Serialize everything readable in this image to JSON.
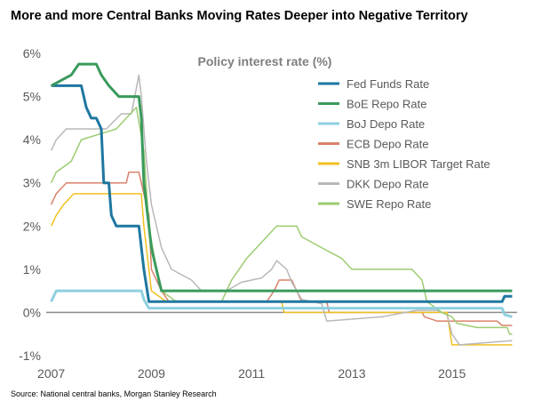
{
  "page": {
    "headline": "More and more Central Banks Moving Rates Deeper into Negative Territory",
    "source": "Source: National central banks, Morgan Stanley Research"
  },
  "chart_data": {
    "type": "line",
    "title": "Policy interest rate (%)",
    "xlabel": "",
    "ylabel": "",
    "xlim": [
      2006.9,
      2016.3
    ],
    "ylim": [
      -1,
      6
    ],
    "x_ticks": [
      {
        "value": 2007,
        "label": "2007"
      },
      {
        "value": 2009,
        "label": "2009"
      },
      {
        "value": 2011,
        "label": "2011"
      },
      {
        "value": 2013,
        "label": "2013"
      },
      {
        "value": 2015,
        "label": "2015"
      }
    ],
    "y_ticks": [
      {
        "value": 6,
        "label": "6%"
      },
      {
        "value": 5,
        "label": "5%"
      },
      {
        "value": 4,
        "label": "4%"
      },
      {
        "value": 3,
        "label": "3%"
      },
      {
        "value": 2,
        "label": "2%"
      },
      {
        "value": 1,
        "label": "1%"
      },
      {
        "value": 0,
        "label": "0%"
      },
      {
        "value": -1,
        "label": "-1%"
      }
    ],
    "grid": false,
    "legend": "top-right",
    "series": [
      {
        "name": "Fed Funds Rate",
        "color": "#1f77a0",
        "width": 3,
        "points": [
          [
            2007.0,
            5.25
          ],
          [
            2007.6,
            5.25
          ],
          [
            2007.7,
            4.75
          ],
          [
            2007.8,
            4.5
          ],
          [
            2007.9,
            4.5
          ],
          [
            2008.0,
            4.25
          ],
          [
            2008.05,
            3.0
          ],
          [
            2008.15,
            3.0
          ],
          [
            2008.2,
            2.25
          ],
          [
            2008.3,
            2.0
          ],
          [
            2008.75,
            2.0
          ],
          [
            2008.8,
            1.5
          ],
          [
            2008.85,
            1.0
          ],
          [
            2008.95,
            0.25
          ],
          [
            2016.0,
            0.25
          ],
          [
            2016.05,
            0.375
          ],
          [
            2016.2,
            0.375
          ]
        ]
      },
      {
        "name": "BoE Repo Rate",
        "color": "#3a9a5c",
        "width": 3,
        "points": [
          [
            2007.0,
            5.25
          ],
          [
            2007.4,
            5.5
          ],
          [
            2007.55,
            5.75
          ],
          [
            2007.9,
            5.75
          ],
          [
            2008.0,
            5.5
          ],
          [
            2008.15,
            5.25
          ],
          [
            2008.35,
            5.0
          ],
          [
            2008.75,
            5.0
          ],
          [
            2008.8,
            4.5
          ],
          [
            2008.85,
            3.0
          ],
          [
            2008.95,
            2.0
          ],
          [
            2009.0,
            1.5
          ],
          [
            2009.1,
            1.0
          ],
          [
            2009.2,
            0.5
          ],
          [
            2016.2,
            0.5
          ]
        ]
      },
      {
        "name": "BoJ Depo Rate",
        "color": "#8fd0e0",
        "width": 3,
        "points": [
          [
            2007.0,
            0.25
          ],
          [
            2007.1,
            0.5
          ],
          [
            2008.8,
            0.5
          ],
          [
            2008.85,
            0.3
          ],
          [
            2008.95,
            0.1
          ],
          [
            2016.0,
            0.1
          ],
          [
            2016.05,
            -0.05
          ],
          [
            2016.2,
            -0.1
          ]
        ]
      },
      {
        "name": "ECB Depo Rate",
        "color": "#d9826a",
        "width": 1.5,
        "points": [
          [
            2007.0,
            2.5
          ],
          [
            2007.1,
            2.75
          ],
          [
            2007.3,
            3.0
          ],
          [
            2008.5,
            3.0
          ],
          [
            2008.55,
            3.25
          ],
          [
            2008.75,
            3.25
          ],
          [
            2008.85,
            2.75
          ],
          [
            2008.95,
            2.25
          ],
          [
            2009.0,
            1.0
          ],
          [
            2009.2,
            0.5
          ],
          [
            2009.35,
            0.25
          ],
          [
            2011.3,
            0.25
          ],
          [
            2011.45,
            0.5
          ],
          [
            2011.55,
            0.75
          ],
          [
            2011.8,
            0.75
          ],
          [
            2011.9,
            0.5
          ],
          [
            2012.0,
            0.25
          ],
          [
            2012.5,
            0.25
          ],
          [
            2012.55,
            0.0
          ],
          [
            2014.4,
            0.0
          ],
          [
            2014.45,
            -0.1
          ],
          [
            2014.7,
            -0.2
          ],
          [
            2015.9,
            -0.2
          ],
          [
            2016.0,
            -0.3
          ],
          [
            2016.2,
            -0.3
          ]
        ]
      },
      {
        "name": "SNB 3m LIBOR Target Rate",
        "color": "#f0c020",
        "width": 1.5,
        "points": [
          [
            2007.0,
            2.0
          ],
          [
            2007.1,
            2.25
          ],
          [
            2007.25,
            2.5
          ],
          [
            2007.45,
            2.75
          ],
          [
            2008.8,
            2.75
          ],
          [
            2008.85,
            2.0
          ],
          [
            2008.95,
            1.0
          ],
          [
            2009.0,
            0.5
          ],
          [
            2009.3,
            0.25
          ],
          [
            2011.6,
            0.25
          ],
          [
            2011.65,
            0.0
          ],
          [
            2014.9,
            0.0
          ],
          [
            2015.0,
            -0.75
          ],
          [
            2016.2,
            -0.75
          ]
        ]
      },
      {
        "name": "DKK Depo Rate",
        "color": "#b8b8b8",
        "width": 1.5,
        "points": [
          [
            2007.0,
            3.75
          ],
          [
            2007.1,
            4.0
          ],
          [
            2007.3,
            4.25
          ],
          [
            2008.1,
            4.25
          ],
          [
            2008.4,
            4.6
          ],
          [
            2008.6,
            4.6
          ],
          [
            2008.75,
            5.5
          ],
          [
            2008.8,
            5.0
          ],
          [
            2008.9,
            3.5
          ],
          [
            2009.0,
            2.5
          ],
          [
            2009.2,
            1.5
          ],
          [
            2009.4,
            1.0
          ],
          [
            2009.8,
            0.75
          ],
          [
            2010.0,
            0.5
          ],
          [
            2010.5,
            0.5
          ],
          [
            2010.8,
            0.7
          ],
          [
            2011.2,
            0.8
          ],
          [
            2011.4,
            1.0
          ],
          [
            2011.5,
            1.2
          ],
          [
            2011.7,
            1.0
          ],
          [
            2011.8,
            0.7
          ],
          [
            2012.0,
            0.3
          ],
          [
            2012.4,
            0.2
          ],
          [
            2012.5,
            -0.2
          ],
          [
            2013.6,
            -0.1
          ],
          [
            2014.3,
            0.05
          ],
          [
            2014.7,
            0.05
          ],
          [
            2014.9,
            -0.05
          ],
          [
            2015.0,
            -0.5
          ],
          [
            2015.15,
            -0.75
          ],
          [
            2016.2,
            -0.65
          ]
        ]
      },
      {
        "name": "SWE Repo Rate",
        "color": "#9ccc70",
        "width": 1.5,
        "points": [
          [
            2007.0,
            3.0
          ],
          [
            2007.1,
            3.25
          ],
          [
            2007.4,
            3.5
          ],
          [
            2007.5,
            3.75
          ],
          [
            2007.6,
            4.0
          ],
          [
            2008.3,
            4.25
          ],
          [
            2008.7,
            4.75
          ],
          [
            2008.85,
            3.75
          ],
          [
            2008.95,
            2.0
          ],
          [
            2009.1,
            1.0
          ],
          [
            2009.2,
            0.5
          ],
          [
            2009.5,
            0.25
          ],
          [
            2010.4,
            0.25
          ],
          [
            2010.5,
            0.5
          ],
          [
            2010.6,
            0.75
          ],
          [
            2010.75,
            1.0
          ],
          [
            2010.9,
            1.25
          ],
          [
            2011.1,
            1.5
          ],
          [
            2011.3,
            1.75
          ],
          [
            2011.5,
            2.0
          ],
          [
            2011.9,
            2.0
          ],
          [
            2012.0,
            1.75
          ],
          [
            2012.4,
            1.5
          ],
          [
            2012.8,
            1.25
          ],
          [
            2013.0,
            1.0
          ],
          [
            2014.2,
            1.0
          ],
          [
            2014.4,
            0.75
          ],
          [
            2014.5,
            0.25
          ],
          [
            2014.8,
            0.0
          ],
          [
            2015.0,
            -0.1
          ],
          [
            2015.1,
            -0.25
          ],
          [
            2015.5,
            -0.35
          ],
          [
            2016.1,
            -0.35
          ],
          [
            2016.15,
            -0.5
          ],
          [
            2016.2,
            -0.5
          ]
        ]
      }
    ]
  }
}
